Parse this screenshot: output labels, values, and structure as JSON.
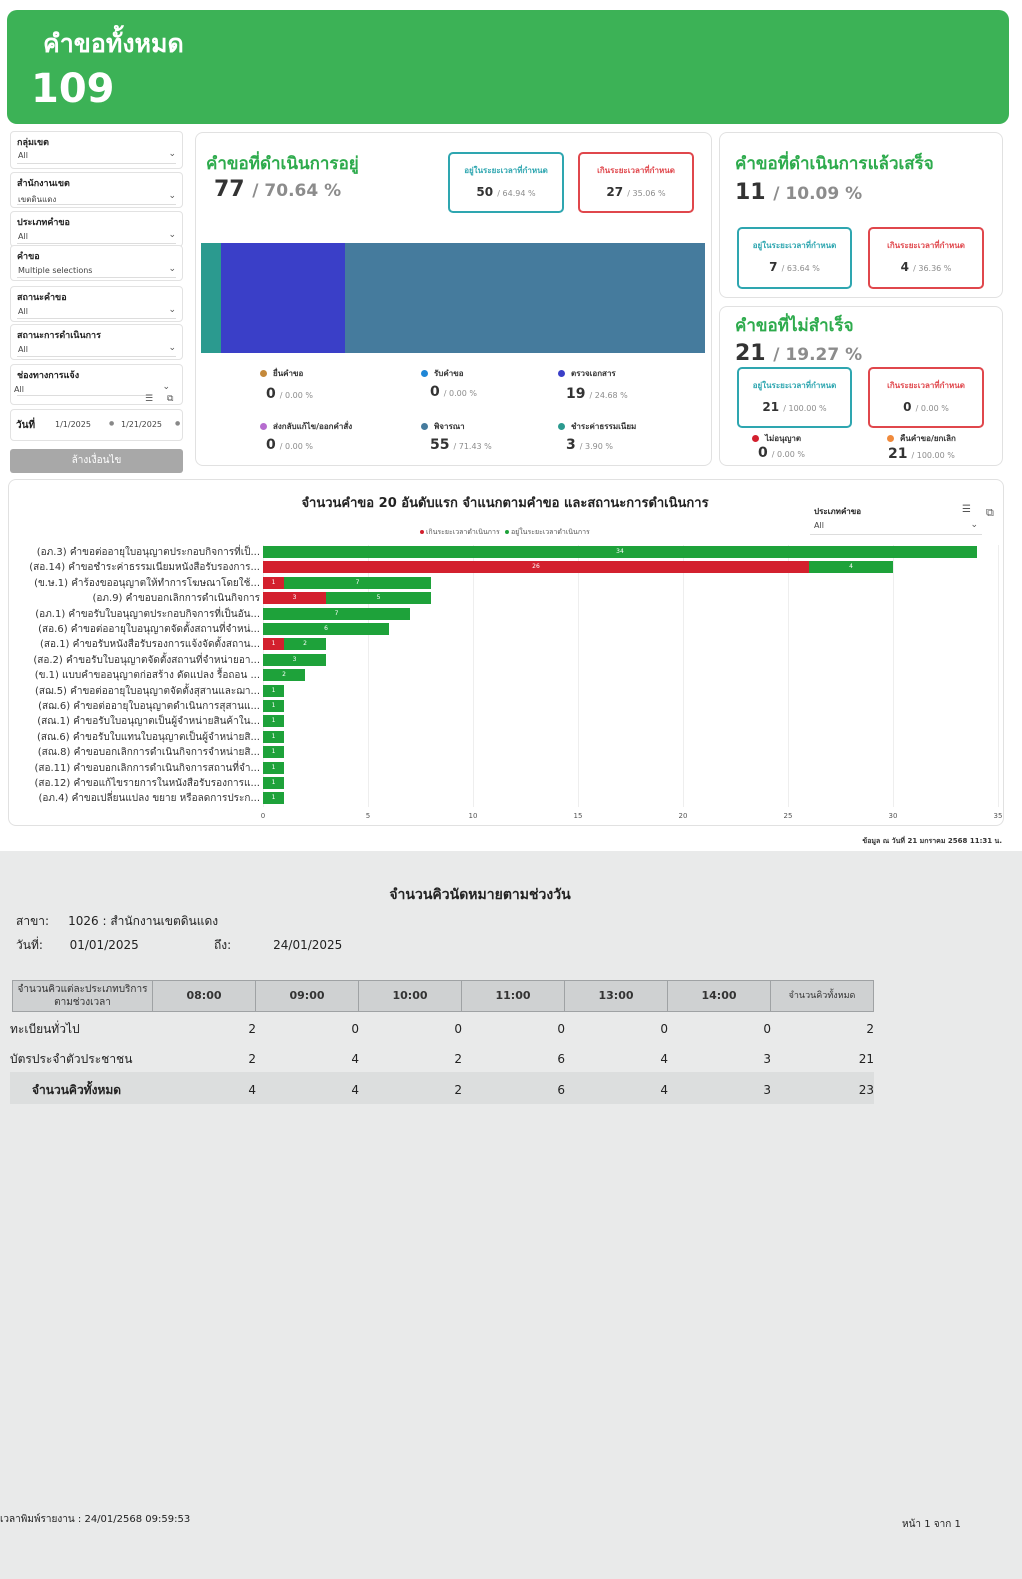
{
  "header": {
    "title": "คำขอทั้งหมด",
    "total": "109"
  },
  "filters": [
    {
      "label": "กลุ่มเขต",
      "value": "All"
    },
    {
      "label": "สำนักงานเขต",
      "value": "เขตดินแดง"
    },
    {
      "label": "ประเภทคำขอ",
      "value": "All"
    },
    {
      "label": "คำขอ",
      "value": "Multiple selections"
    },
    {
      "label": "สถานะคำขอ",
      "value": "All"
    },
    {
      "label": "สถานะการดำเนินการ",
      "value": "All"
    },
    {
      "label": "ช่องทางการแจ้ง",
      "value": "All"
    }
  ],
  "date_filter": {
    "label": "วันที่",
    "from": "1/1/2025",
    "to": "1/21/2025"
  },
  "clear_button": "ล้างเงื่อนไข",
  "in_progress": {
    "title": "คำขอที่ดำเนินการอยู่",
    "count": "77",
    "pct": "/ 70.64 %",
    "within": {
      "label": "อยู่ในระยะเวลาที่กำหนด",
      "count": "50",
      "pct": "/ 64.94 %"
    },
    "over": {
      "label": "เกินระยะเวลาที่กำหนด",
      "count": "27",
      "pct": "/ 35.06 %"
    },
    "stacked_bar": [
      {
        "name": "ชำระค่าธรรมเนียม",
        "value": 3,
        "color": "#2b9a8f"
      },
      {
        "name": "ตรวจเอกสาร",
        "value": 19,
        "color": "#3a3fc8"
      },
      {
        "name": "พิจารณา",
        "value": 55,
        "color": "#457b9d"
      }
    ],
    "stages": [
      {
        "label": "ยื่นคำขอ",
        "count": "0",
        "pct": "/ 0.00 %",
        "color": "#c4893a"
      },
      {
        "label": "รับคำขอ",
        "count": "0",
        "pct": "/ 0.00 %",
        "color": "#1f86d6"
      },
      {
        "label": "ตรวจเอกสาร",
        "count": "19",
        "pct": "/ 24.68 %",
        "color": "#3a3fc8"
      },
      {
        "label": "ส่งกลับแก้ไข/ออกคำสั่ง",
        "count": "0",
        "pct": "/ 0.00 %",
        "color": "#b66ccf"
      },
      {
        "label": "พิจารณา",
        "count": "55",
        "pct": "/ 71.43 %",
        "color": "#457b9d"
      },
      {
        "label": "ชำระค่าธรรมเนียม",
        "count": "3",
        "pct": "/ 3.90 %",
        "color": "#2b9a8f"
      }
    ]
  },
  "completed": {
    "title": "คำขอที่ดำเนินการแล้วเสร็จ",
    "count": "11",
    "pct": "/ 10.09 %",
    "within": {
      "label": "อยู่ในระยะเวลาที่กำหนด",
      "count": "7",
      "pct": "/ 63.64 %"
    },
    "over": {
      "label": "เกินระยะเวลาที่กำหนด",
      "count": "4",
      "pct": "/ 36.36 %"
    }
  },
  "failed": {
    "title": "คำขอที่ไม่สำเร็จ",
    "count": "21",
    "pct": "/ 19.27 %",
    "within": {
      "label": "อยู่ในระยะเวลาที่กำหนด",
      "count": "21",
      "pct": "/ 100.00 %"
    },
    "over": {
      "label": "เกินระยะเวลาที่กำหนด",
      "count": "0",
      "pct": "/ 0.00 %"
    },
    "not_approved": {
      "label": "ไม่อนุญาต",
      "count": "0",
      "pct": "/ 0.00 %",
      "color": "#d3202e"
    },
    "withdrawn": {
      "label": "คืนคำขอ/ยกเลิก",
      "count": "21",
      "pct": "/ 100.00 %",
      "color": "#f08a3c"
    }
  },
  "chart_title": "จำนวนคำขอ 20 อันดับแรก  จำแนกตามคำขอ และสถานะการดำเนินการ",
  "type_filter": {
    "label": "ประเภทคำขอ",
    "value": "All"
  },
  "chart_data": {
    "type": "bar",
    "orientation": "horizontal",
    "stacked": true,
    "categories": [
      "(อภ.3) คำขอต่ออายุใบอนุญาตประกอบกิจการที่เป็...",
      "(สอ.14) คำขอชำระค่าธรรมเนียมหนังสือรับรองการ...",
      "(ข.ษ.1) คำร้องขออนุญาตให้ทำการโฆษณาโดยใช้...",
      "(อภ.9) คำขอบอกเลิกการดำเนินกิจการ",
      "(อภ.1) คำขอรับใบอนุญาตประกอบกิจการที่เป็นอัน...",
      "(สอ.6) คำขอต่ออายุใบอนุญาตจัดตั้งสถานที่จำหน่...",
      "(สอ.1) คำขอรับหนังสือรับรองการแจ้งจัดตั้งสถาน...",
      "(สอ.2) คำขอรับใบอนุญาตจัดตั้งสถานที่จำหน่ายอา...",
      "(ข.1) แบบคำขออนุญาตก่อสร้าง ดัดแปลง รื้อถอน ...",
      "(สฌ.5) คำขอต่ออายุใบอนุญาตจัดตั้งสุสานและฌา...",
      "(สฌ.6) คำขอต่ออายุใบอนุญาตดำเนินการสุสานแ...",
      "(สณ.1) คำขอรับใบอนุญาตเป็นผู้จำหน่ายสินค้าใน...",
      "(สณ.6) คำขอรับใบแทนใบอนุญาตเป็นผู้จำหน่ายสิ...",
      "(สณ.8) คำขอบอกเลิกการดำเนินกิจการจำหน่ายสิ...",
      "(สอ.11) คำขอบอกเลิกการดำเนินกิจการสถานที่จำ...",
      "(สอ.12) คำขอแก้ไขรายการในหนังสือรับรองการแ...",
      "(อภ.4) คำขอเปลี่ยนแปลง ขยาย หรือลดการประก..."
    ],
    "series": [
      {
        "name": "เกินระยะเวลาดำเนินการ",
        "color": "#d3202e",
        "values": [
          0,
          26,
          1,
          3,
          0,
          0,
          1,
          0,
          0,
          0,
          0,
          0,
          0,
          0,
          0,
          0,
          0
        ]
      },
      {
        "name": "อยู่ในระยะเวลาดำเนินการ",
        "color": "#1ea23a",
        "values": [
          34,
          4,
          7,
          5,
          7,
          6,
          2,
          3,
          2,
          1,
          1,
          1,
          1,
          1,
          1,
          1,
          1
        ]
      }
    ],
    "x_ticks": [
      "0",
      "5",
      "10",
      "15",
      "20",
      "25",
      "30",
      "35"
    ],
    "xlim": [
      0,
      35
    ]
  },
  "as_of": "ข้อมูล ณ วันที่ 21 มกราคม 2568  11:31 น.",
  "report": {
    "title": "จำนวนคิวนัดหมายตามช่วงวัน",
    "branch_label": "สาขา:",
    "branch_value": "1026 : สำนักงานเขตดินแดง",
    "date_label": "วันที่:",
    "date_from": "01/01/2025",
    "to_label": "ถึง:",
    "date_to": "24/01/2025",
    "header_first": "จำนวนคิวแต่ละประเภทบริการตามช่วงเวลา",
    "columns": [
      "08:00",
      "09:00",
      "10:00",
      "11:00",
      "13:00",
      "14:00",
      "จำนวนคิวทั้งหมด"
    ],
    "rows": [
      {
        "label": "ทะเบียนทั่วไป",
        "values": [
          "2",
          "0",
          "0",
          "0",
          "0",
          "0",
          "2"
        ]
      },
      {
        "label": "บัตรประจำตัวประชาชน",
        "values": [
          "2",
          "4",
          "2",
          "6",
          "4",
          "3",
          "21"
        ]
      },
      {
        "label": "จำนวนคิวทั้งหมด",
        "values": [
          "4",
          "4",
          "2",
          "6",
          "4",
          "3",
          "23"
        ]
      }
    ],
    "printed": "เวลาพิมพ์รายงาน : 24/01/2568 09:59:53",
    "page": "หน้า 1 จาก 1"
  }
}
